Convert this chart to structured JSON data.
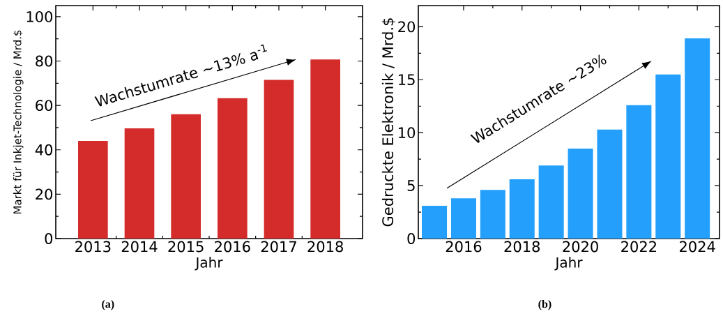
{
  "chart_data": [
    {
      "type": "bar",
      "x": [
        2013,
        2014,
        2015,
        2016,
        2017,
        2018
      ],
      "values": [
        44,
        49.7,
        56,
        63.3,
        71.5,
        80.7
      ],
      "color": "#d42b2b",
      "xlim": [
        2012.2,
        2018.8
      ],
      "xticks": [
        2013,
        2014,
        2015,
        2016,
        2017,
        2018
      ],
      "ylim": [
        0,
        105
      ],
      "yticks": [
        0,
        20,
        40,
        60,
        80,
        100
      ],
      "xlabel": "Jahr",
      "ylabel": "Markt für Inkjet-Technologie / Mrd.$",
      "annotations": [
        "Wachstumrate ~13% a$^{-1}$",
        "(a)"
      ]
    },
    {
      "type": "bar",
      "x": [
        2015,
        2016,
        2017,
        2018,
        2019,
        2020,
        2021,
        2022,
        2023,
        2024
      ],
      "values": [
        3.1,
        3.8,
        4.6,
        5.6,
        6.9,
        8.5,
        10.3,
        12.6,
        15.5,
        18.9
      ],
      "color": "#24a0fc",
      "xlim": [
        2014.45,
        2024.76
      ],
      "xticks": [
        2016,
        2018,
        2020,
        2022,
        2024
      ],
      "ylim": [
        0,
        22
      ],
      "yticks": [
        0,
        5,
        10,
        15,
        20
      ],
      "xlabel": "Jahr",
      "ylabel": "Gedruckte Elektronik / Mrd.$",
      "annotations": [
        "Wachstumrate ~23%",
        "(b)"
      ]
    }
  ]
}
